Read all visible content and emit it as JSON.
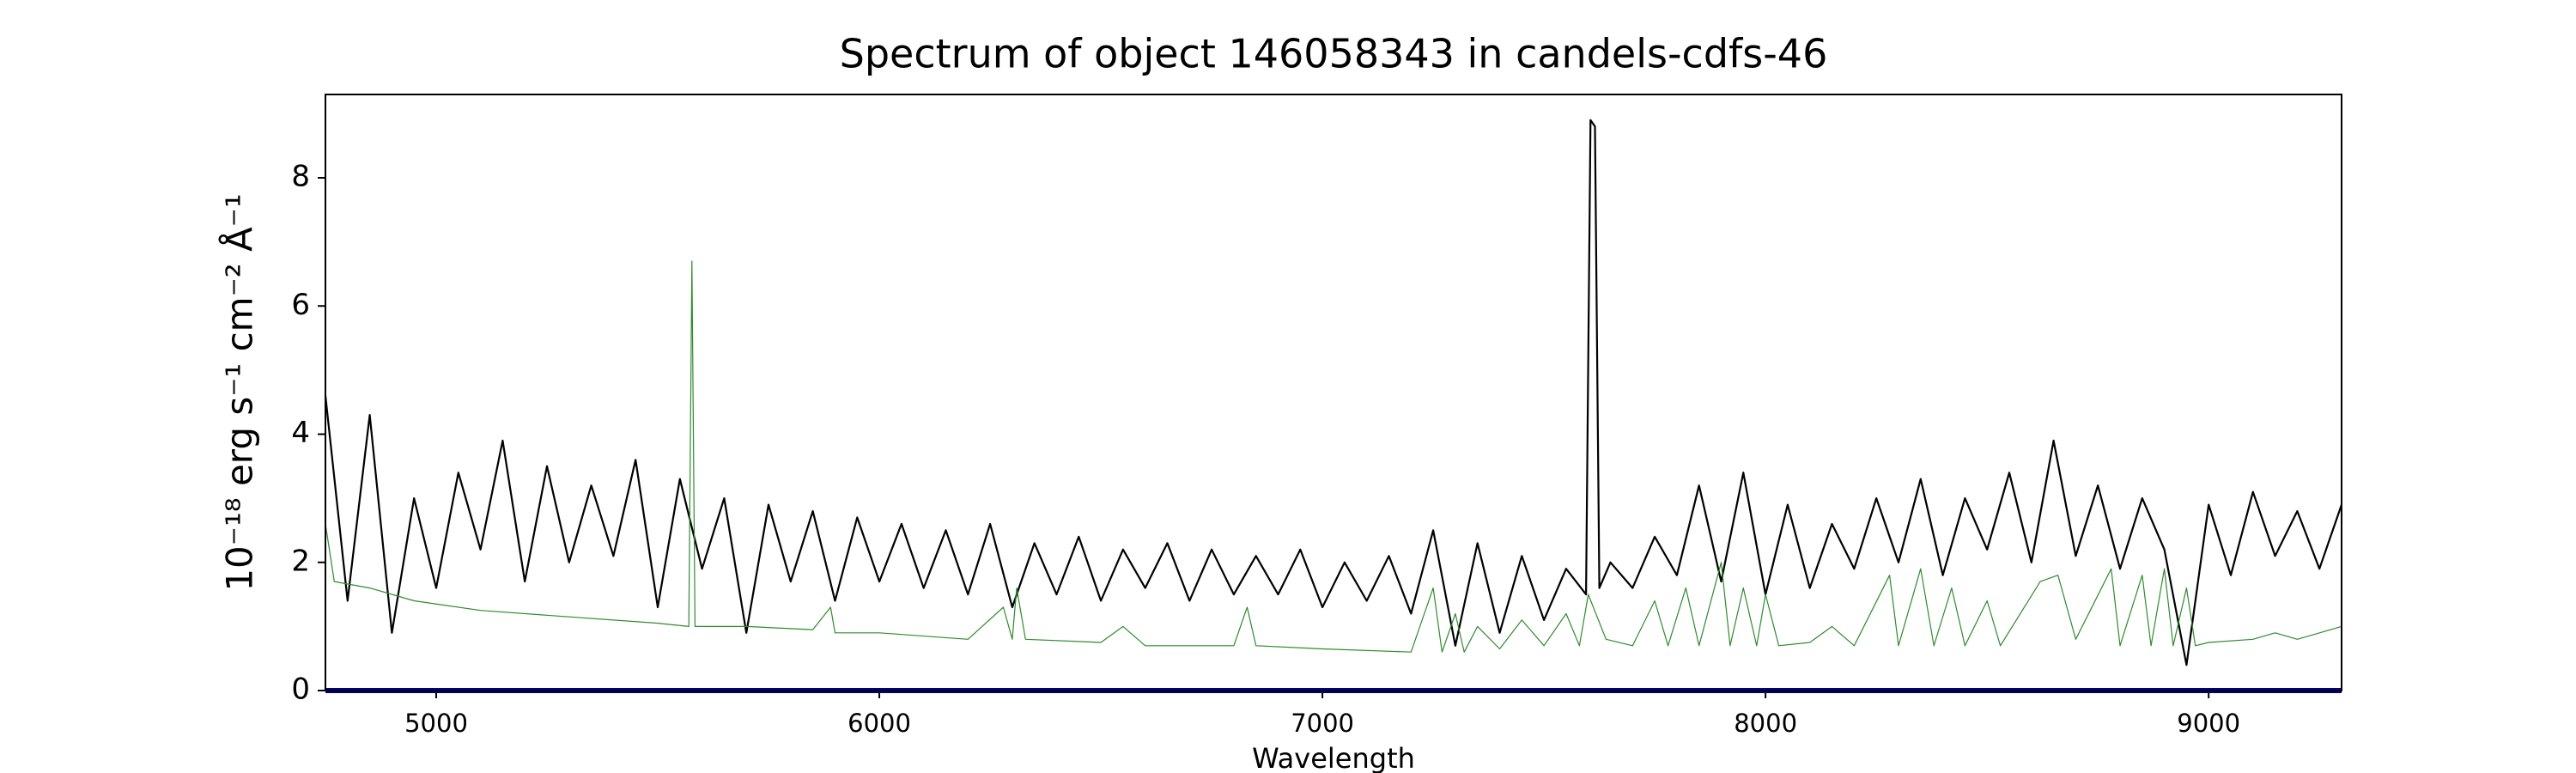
{
  "chart_data": {
    "type": "line",
    "title": "Spectrum of object 146058343 in candels-cdfs-46",
    "xlabel": "Wavelength",
    "ylabel": "10⁻¹⁸ erg s⁻¹ cm⁻² Å⁻¹",
    "xlim": [
      4750,
      9300
    ],
    "ylim": [
      0,
      9.3
    ],
    "xticks": [
      5000,
      6000,
      7000,
      8000,
      9000
    ],
    "yticks": [
      0,
      2,
      4,
      6,
      8
    ],
    "series": [
      {
        "color": "#000000",
        "width": 2.2,
        "x": [
          4750,
          4800,
          4850,
          4900,
          4950,
          5000,
          5050,
          5100,
          5150,
          5200,
          5250,
          5300,
          5350,
          5400,
          5450,
          5500,
          5550,
          5600,
          5650,
          5700,
          5750,
          5800,
          5850,
          5900,
          5950,
          6000,
          6050,
          6100,
          6150,
          6200,
          6250,
          6300,
          6350,
          6400,
          6450,
          6500,
          6550,
          6600,
          6650,
          6700,
          6750,
          6800,
          6850,
          6900,
          6950,
          7000,
          7050,
          7100,
          7150,
          7200,
          7250,
          7300,
          7350,
          7400,
          7450,
          7500,
          7550,
          7595,
          7605,
          7615,
          7625,
          7650,
          7700,
          7750,
          7800,
          7850,
          7900,
          7950,
          8000,
          8050,
          8100,
          8150,
          8200,
          8250,
          8300,
          8350,
          8400,
          8450,
          8500,
          8550,
          8600,
          8650,
          8700,
          8750,
          8800,
          8850,
          8900,
          8950,
          9000,
          9050,
          9100,
          9150,
          9200,
          9250,
          9300
        ],
        "values": [
          4.6,
          1.4,
          4.3,
          0.9,
          3.0,
          1.6,
          3.4,
          2.2,
          3.9,
          1.7,
          3.5,
          2.0,
          3.2,
          2.1,
          3.6,
          1.3,
          3.3,
          1.9,
          3.0,
          0.9,
          2.9,
          1.7,
          2.8,
          1.4,
          2.7,
          1.7,
          2.6,
          1.6,
          2.5,
          1.5,
          2.6,
          1.3,
          2.3,
          1.5,
          2.4,
          1.4,
          2.2,
          1.6,
          2.3,
          1.4,
          2.2,
          1.5,
          2.1,
          1.5,
          2.2,
          1.3,
          2.0,
          1.4,
          2.1,
          1.2,
          2.5,
          0.7,
          2.3,
          0.9,
          2.1,
          1.1,
          1.9,
          1.5,
          8.9,
          8.8,
          1.6,
          2.0,
          1.6,
          2.4,
          1.8,
          3.2,
          1.7,
          3.4,
          1.5,
          2.9,
          1.6,
          2.6,
          1.9,
          3.0,
          2.0,
          3.3,
          1.8,
          3.0,
          2.2,
          3.4,
          2.0,
          3.9,
          2.1,
          3.2,
          1.9,
          3.0,
          2.2,
          0.4,
          2.9,
          1.8,
          3.1,
          2.1,
          2.8,
          1.9,
          2.9
        ]
      },
      {
        "color": "#2e8b2e",
        "width": 1.2,
        "x": [
          4750,
          4770,
          4850,
          4950,
          5100,
          5300,
          5500,
          5570,
          5577,
          5584,
          5700,
          5850,
          5890,
          5900,
          6000,
          6200,
          6280,
          6300,
          6310,
          6330,
          6500,
          6550,
          6600,
          6800,
          6830,
          6850,
          7000,
          7200,
          7250,
          7270,
          7300,
          7320,
          7350,
          7400,
          7450,
          7500,
          7550,
          7580,
          7600,
          7640,
          7700,
          7750,
          7780,
          7820,
          7850,
          7900,
          7920,
          7950,
          7980,
          8000,
          8030,
          8100,
          8150,
          8200,
          8280,
          8300,
          8350,
          8380,
          8420,
          8450,
          8500,
          8530,
          8620,
          8660,
          8700,
          8780,
          8800,
          8850,
          8870,
          8900,
          8920,
          8950,
          8970,
          9000,
          9100,
          9150,
          9200,
          9300
        ],
        "values": [
          2.6,
          1.7,
          1.6,
          1.4,
          1.25,
          1.15,
          1.05,
          1.0,
          6.7,
          1.0,
          1.0,
          0.95,
          1.3,
          0.9,
          0.9,
          0.8,
          1.3,
          0.8,
          1.6,
          0.8,
          0.75,
          1.0,
          0.7,
          0.7,
          1.3,
          0.7,
          0.65,
          0.6,
          1.6,
          0.6,
          1.2,
          0.6,
          1.0,
          0.65,
          1.1,
          0.7,
          1.2,
          0.7,
          1.5,
          0.8,
          0.7,
          1.4,
          0.7,
          1.6,
          0.7,
          2.0,
          0.7,
          1.6,
          0.7,
          1.5,
          0.7,
          0.75,
          1.0,
          0.7,
          1.8,
          0.7,
          1.9,
          0.7,
          1.6,
          0.7,
          1.4,
          0.7,
          1.7,
          1.8,
          0.8,
          1.9,
          0.7,
          1.8,
          0.7,
          1.9,
          0.7,
          1.6,
          0.7,
          0.75,
          0.8,
          0.9,
          0.8,
          1.0
        ]
      },
      {
        "color": "#00008b",
        "width": 6,
        "x": [
          4750,
          9300
        ],
        "values": [
          0,
          0
        ]
      }
    ]
  }
}
